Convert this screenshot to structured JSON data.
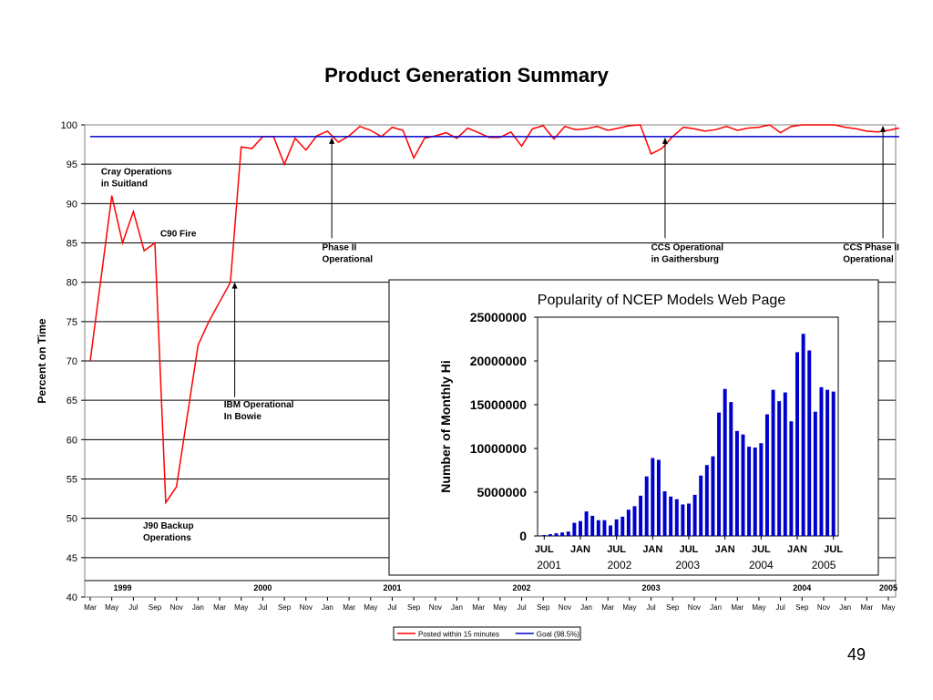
{
  "page": {
    "title": "Product Generation Summary",
    "page_number": "49"
  },
  "chart_data": [
    {
      "type": "line",
      "ylabel": "Percent on Time",
      "ylim": [
        40,
        100
      ],
      "yticks": [
        40,
        45,
        50,
        55,
        60,
        65,
        70,
        75,
        80,
        85,
        90,
        95,
        100
      ],
      "grid": true,
      "x_month_labels": [
        "Mar",
        "May",
        "Jul",
        "Sep",
        "Nov",
        "Jan",
        "Mar",
        "May",
        "Jul",
        "Sep",
        "Nov",
        "Jan",
        "Mar",
        "May",
        "Jul",
        "Sep",
        "Nov",
        "Jan",
        "Mar",
        "May",
        "Jul",
        "Sep",
        "Nov",
        "Jan",
        "Mar",
        "May",
        "Jul",
        "Sep",
        "Nov",
        "Jan",
        "Mar",
        "May",
        "Jul",
        "Sep",
        "Nov",
        "Jan",
        "Mar",
        "May"
      ],
      "year_labels": [
        {
          "label": "1999",
          "month_index": 3
        },
        {
          "label": "2000",
          "month_index": 16
        },
        {
          "label": "2001",
          "month_index": 28
        },
        {
          "label": "2002",
          "month_index": 40
        },
        {
          "label": "2003",
          "month_index": 52
        },
        {
          "label": "2004",
          "month_index": 66
        },
        {
          "label": "2005",
          "month_index": 74
        }
      ],
      "series": [
        {
          "name": "Posted within 15 minutes",
          "color": "#ff0000",
          "points": [
            [
              0,
              70
            ],
            [
              2,
              91
            ],
            [
              3,
              85
            ],
            [
              4,
              89
            ],
            [
              5,
              84
            ],
            [
              6,
              85
            ],
            [
              7,
              52
            ],
            [
              8,
              54
            ],
            [
              10,
              72
            ],
            [
              11,
              75
            ],
            [
              13,
              80
            ],
            [
              14,
              97.2
            ],
            [
              15,
              97
            ],
            [
              16,
              98.5
            ],
            [
              17,
              98.5
            ],
            [
              18,
              95
            ],
            [
              19,
              98.3
            ],
            [
              20,
              96.8
            ],
            [
              21,
              98.6
            ],
            [
              22,
              99.2
            ],
            [
              23,
              97.8
            ],
            [
              24,
              98.6
            ],
            [
              25,
              99.8
            ],
            [
              26,
              99.3
            ],
            [
              27,
              98.5
            ],
            [
              28,
              99.7
            ],
            [
              29,
              99.3
            ],
            [
              30,
              95.8
            ],
            [
              31,
              98.3
            ],
            [
              32,
              98.6
            ],
            [
              33,
              99
            ],
            [
              34,
              98.3
            ],
            [
              35,
              99.6
            ],
            [
              36,
              99
            ],
            [
              37,
              98.4
            ],
            [
              38,
              98.4
            ],
            [
              39,
              99.1
            ],
            [
              40,
              97.3
            ],
            [
              41,
              99.5
            ],
            [
              42,
              99.9
            ],
            [
              43,
              98.2
            ],
            [
              44,
              99.8
            ],
            [
              45,
              99.4
            ],
            [
              46,
              99.5
            ],
            [
              47,
              99.8
            ],
            [
              48,
              99.3
            ],
            [
              49,
              99.6
            ],
            [
              50,
              99.9
            ],
            [
              51,
              100
            ],
            [
              52,
              96.3
            ],
            [
              53,
              97
            ],
            [
              54,
              98.5
            ],
            [
              55,
              99.7
            ],
            [
              56,
              99.5
            ],
            [
              57,
              99.2
            ],
            [
              58,
              99.4
            ],
            [
              59,
              99.8
            ],
            [
              60,
              99.3
            ],
            [
              61,
              99.6
            ],
            [
              62,
              99.7
            ],
            [
              63,
              100
            ],
            [
              64,
              99
            ],
            [
              65,
              99.8
            ],
            [
              66,
              100
            ],
            [
              67,
              100
            ],
            [
              68,
              100
            ],
            [
              69,
              100
            ],
            [
              70,
              99.7
            ],
            [
              71,
              99.5
            ],
            [
              72,
              99.2
            ],
            [
              73,
              99.1
            ],
            [
              74,
              99.3
            ],
            [
              75,
              99.6
            ]
          ]
        },
        {
          "name": "Goal (98.5%)",
          "color": "#0000cc",
          "points": [
            [
              0,
              98.5
            ],
            [
              75,
              98.5
            ]
          ]
        }
      ],
      "annotations": [
        {
          "lines": [
            "Cray Operations",
            "in Suitland"
          ],
          "month": 1,
          "value": 93.7
        },
        {
          "lines": [
            "C90 Fire"
          ],
          "month": 6.5,
          "value": 85.8
        },
        {
          "lines": [
            "J90 Backup",
            "Operations"
          ],
          "month": 4.9,
          "value": 48.7
        },
        {
          "lines": [
            "IBM Operational",
            "In Bowie"
          ],
          "month": 12.4,
          "value": 64.1,
          "arrow": {
            "month": 13.4,
            "from_value": 65.4,
            "to_value": 80
          }
        },
        {
          "lines": [
            "Phase II",
            "Operational"
          ],
          "month": 21.5,
          "value": 84.1,
          "arrow": {
            "month": 22.4,
            "from_value": 85.6,
            "to_value": 98.4
          }
        },
        {
          "lines": [
            "CCS Operational",
            "in Gaithersburg"
          ],
          "month": 52,
          "value": 84.1,
          "arrow": {
            "month": 53.3,
            "from_value": 85.6,
            "to_value": 98.4
          }
        },
        {
          "lines": [
            "CCS Phase II",
            "Operational"
          ],
          "month": 69.8,
          "value": 84.1,
          "arrow": {
            "month": 73.5,
            "from_value": 85.6,
            "to_value": 99.9
          }
        }
      ],
      "legend": {
        "placement": "bottom-center",
        "entries": [
          {
            "label": "Posted within 15 minutes",
            "color": "#ff0000"
          },
          {
            "label": "Goal (98.5%)",
            "color": "#0000cc"
          }
        ]
      }
    },
    {
      "type": "bar",
      "title": "Popularity of NCEP Models Web Page",
      "ylabel": "Number of Monthly Hi",
      "ylim": [
        0,
        25000000
      ],
      "yticks": [
        "0",
        "5000000",
        "10000000",
        "15000000",
        "20000000",
        "25000000"
      ],
      "ytick_values": [
        0,
        5000000,
        10000000,
        15000000,
        20000000,
        25000000
      ],
      "bar_color": "#0000cc",
      "x_labels": [
        {
          "label": "JUL",
          "index": 0
        },
        {
          "label": "JAN",
          "index": 6
        },
        {
          "label": "JUL",
          "index": 12
        },
        {
          "label": "JAN",
          "index": 18
        },
        {
          "label": "JUL",
          "index": 24
        },
        {
          "label": "JAN",
          "index": 30
        },
        {
          "label": "JUL",
          "index": 36
        },
        {
          "label": "JAN",
          "index": 42
        },
        {
          "label": "JUL",
          "index": 48
        }
      ],
      "year_labels": [
        {
          "label": "2001",
          "index": 0.8
        },
        {
          "label": "2002",
          "index": 12.5
        },
        {
          "label": "2003",
          "index": 23.8
        },
        {
          "label": "2004",
          "index": 36
        },
        {
          "label": "2005",
          "index": 46.4
        }
      ],
      "values": [
        100000,
        200000,
        300000,
        400000,
        500000,
        1500000,
        1700000,
        2800000,
        2300000,
        1800000,
        1800000,
        1200000,
        1900000,
        2200000,
        3000000,
        3400000,
        4600000,
        6800000,
        8900000,
        8700000,
        5100000,
        4500000,
        4200000,
        3600000,
        3700000,
        4700000,
        6900000,
        8100000,
        9100000,
        14100000,
        16800000,
        15300000,
        12000000,
        11600000,
        10200000,
        10100000,
        10600000,
        13900000,
        16700000,
        15400000,
        16400000,
        13100000,
        21000000,
        23100000,
        21200000,
        14200000,
        17000000,
        16700000,
        16500000
      ]
    }
  ]
}
